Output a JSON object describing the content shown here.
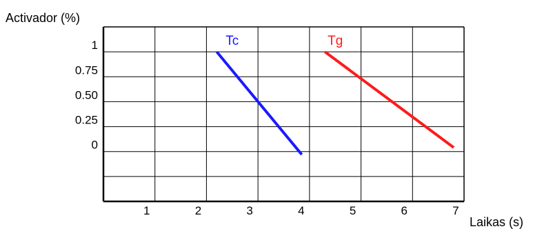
{
  "chart_data": {
    "type": "line",
    "ylabel": "Activador (%)",
    "xlabel": "Laikas (s)",
    "x_ticks": [
      "1",
      "2",
      "3",
      "4",
      "5",
      "6",
      "7"
    ],
    "y_ticks": [
      "1",
      "0.75",
      "0.50",
      "0.25",
      "0"
    ],
    "xlim": [
      0,
      7
    ],
    "ylim": [
      -0.5,
      1.25
    ],
    "grid": true,
    "series": [
      {
        "name": "Tc",
        "color": "#1a1aff",
        "x": [
          2.2,
          3.85
        ],
        "y": [
          1.0,
          -0.03
        ]
      },
      {
        "name": "Tg",
        "color": "#ff1a1a",
        "x": [
          4.3,
          6.8
        ],
        "y": [
          1.0,
          0.04
        ]
      }
    ]
  }
}
